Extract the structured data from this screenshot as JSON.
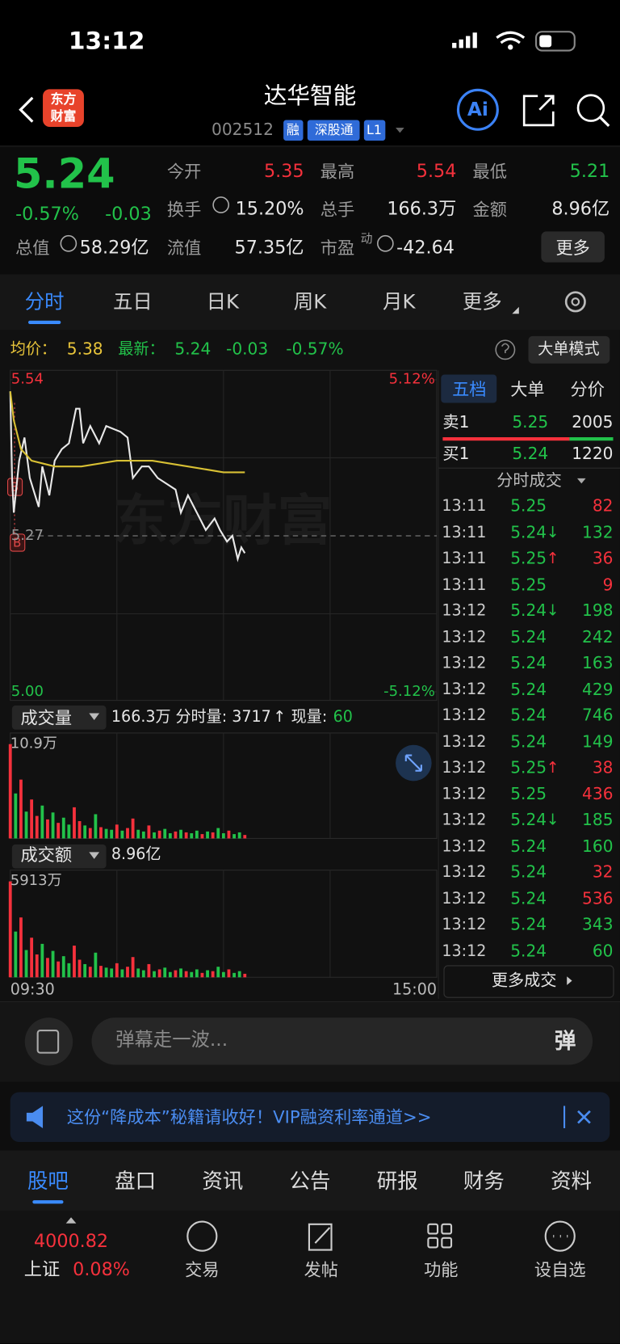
{
  "status_bar": {
    "time": "13:12"
  },
  "header": {
    "logo": [
      "东方",
      "财富"
    ],
    "title": "达华智能",
    "code": "002512",
    "tags": [
      "融",
      "深股通",
      "L1"
    ],
    "ai": "Ai"
  },
  "quote": {
    "price": "5.24",
    "change_pct": "-0.57%",
    "change": "-0.03",
    "stats": [
      {
        "label": "今开",
        "value": "5.35",
        "color": "#f5313c"
      },
      {
        "label": "最高",
        "value": "5.54",
        "color": "#f5313c"
      },
      {
        "label": "最低",
        "value": "5.21",
        "color": "#22c24a"
      },
      {
        "label": "换手",
        "value": "15.20%"
      },
      {
        "label": "总手",
        "value": "166.3万"
      },
      {
        "label": "金额",
        "value": "8.96亿"
      },
      {
        "label": "总值",
        "value": "58.29亿"
      },
      {
        "label": "流值",
        "value": "57.35亿"
      },
      {
        "label": "市盈",
        "superscript": "动",
        "value": "-42.64"
      }
    ],
    "more": "更多"
  },
  "tabs": [
    "分时",
    "五日",
    "日K",
    "周K",
    "月K",
    "更多"
  ],
  "info_bar": {
    "avg_label": "均价：",
    "avg": "5.38",
    "latest_label": "最新：",
    "latest": "5.24",
    "change": "-0.03",
    "change_pct": "-0.57%",
    "button": "大单模式"
  },
  "chart_data": [
    {
      "type": "line",
      "watermark": "东方财富",
      "marker": "B",
      "xlim": [
        0,
        240
      ],
      "xticks": [
        {
          "value": 0,
          "label": "09:30"
        },
        {
          "value": 60
        },
        {
          "value": 120
        },
        {
          "value": 180
        },
        {
          "value": 240,
          "label": "15:00"
        }
      ],
      "ylim": [
        5,
        5.54
      ],
      "yticks": [
        5.54,
        {
          "value": 5.405
        },
        5.27,
        {
          "value": 5.135
        },
        {
          "value": 5,
          "label": "5.00"
        }
      ],
      "y2lim": [
        -5.12,
        5.12
      ],
      "y2ticks": [
        {
          "value": 5.12,
          "label": "5.12%"
        },
        {
          "value": -5.12,
          "label": "-5.12%"
        }
      ],
      "series": [
        {
          "color": "#e8e8e8",
          "x": [
            0,
            1,
            2,
            5,
            8,
            11,
            16,
            18,
            22,
            25,
            29,
            33,
            37,
            39,
            41,
            45,
            50,
            54,
            62,
            66,
            69,
            74,
            78,
            83,
            88,
            93,
            96,
            100,
            105,
            110,
            115,
            118,
            122,
            125,
            128,
            130,
            132
          ],
          "values": [
            5.52,
            5.37,
            5.31,
            5.4,
            5.44,
            5.37,
            5.32,
            5.39,
            5.34,
            5.4,
            5.42,
            5.43,
            5.49,
            5.49,
            5.43,
            5.46,
            5.43,
            5.46,
            5.45,
            5.44,
            5.37,
            5.39,
            5.39,
            5.37,
            5.36,
            5.35,
            5.31,
            5.34,
            5.31,
            5.28,
            5.3,
            5.28,
            5.26,
            5.27,
            5.23,
            5.25,
            5.24
          ]
        },
        {
          "color": "#d8c034",
          "x": [
            0,
            2,
            6,
            12,
            25,
            40,
            60,
            80,
            100,
            120,
            132
          ],
          "values": [
            5.52,
            5.47,
            5.42,
            5.4,
            5.39,
            5.39,
            5.4,
            5.4,
            5.39,
            5.38,
            5.38
          ]
        }
      ]
    },
    {
      "type": "bar",
      "title": "成交量",
      "summary": "166.3万",
      "minute_label": "分时量: 3717",
      "minute_arrow": "↑",
      "current_label": "现量:",
      "current": "60",
      "xlim": [
        0,
        240
      ],
      "ylim": [
        0,
        10.9
      ],
      "yticks": [
        {
          "value": 10.9,
          "label": "10.9万"
        }
      ],
      "x": [
        0,
        3,
        6,
        9,
        12,
        15,
        18,
        21,
        24,
        27,
        30,
        33,
        36,
        39,
        42,
        45,
        48,
        51,
        54,
        57,
        60,
        63,
        66,
        69,
        72,
        75,
        78,
        81,
        84,
        87,
        90,
        93,
        96,
        99,
        102,
        105,
        108,
        111,
        114,
        117,
        120,
        123,
        126,
        129,
        132
      ],
      "values": [
        10.9,
        5.2,
        6.8,
        3.1,
        4.5,
        2.6,
        3.8,
        2.2,
        3.0,
        1.8,
        2.4,
        1.6,
        3.6,
        2.0,
        1.5,
        1.2,
        2.8,
        1.3,
        1.1,
        1.0,
        1.6,
        0.9,
        1.2,
        2.3,
        1.0,
        0.8,
        1.5,
        0.7,
        0.9,
        1.1,
        0.6,
        0.8,
        1.0,
        0.7,
        0.6,
        0.9,
        0.5,
        0.8,
        0.7,
        1.2,
        0.6,
        0.9,
        0.5,
        0.7,
        0.4
      ],
      "bar_colors": [
        "#f5313c",
        "#22c24a",
        "#f5313c",
        "#22c24a",
        "#f5313c",
        "#f5313c",
        "#22c24a",
        "#f5313c",
        "#22c24a",
        "#f5313c",
        "#22c24a",
        "#22c24a",
        "#f5313c",
        "#f5313c",
        "#22c24a",
        "#f5313c",
        "#22c24a",
        "#f5313c",
        "#22c24a",
        "#22c24a",
        "#f5313c",
        "#22c24a",
        "#f5313c",
        "#f5313c",
        "#22c24a",
        "#22c24a",
        "#f5313c",
        "#22c24a",
        "#f5313c",
        "#22c24a",
        "#22c24a",
        "#f5313c",
        "#22c24a",
        "#f5313c",
        "#22c24a",
        "#22c24a",
        "#f5313c",
        "#22c24a",
        "#f5313c",
        "#22c24a",
        "#22c24a",
        "#f5313c",
        "#22c24a",
        "#22c24a",
        "#f5313c"
      ]
    },
    {
      "type": "bar",
      "title": "成交额",
      "summary": "8.96亿",
      "xlim": [
        0,
        240
      ],
      "ylim": [
        0,
        5913
      ],
      "yticks": [
        {
          "value": 5913,
          "label": "5913万"
        }
      ],
      "x": [
        0,
        3,
        6,
        9,
        12,
        15,
        18,
        21,
        24,
        27,
        30,
        33,
        36,
        39,
        42,
        45,
        48,
        51,
        54,
        57,
        60,
        63,
        66,
        69,
        72,
        75,
        78,
        81,
        84,
        87,
        90,
        93,
        96,
        99,
        102,
        105,
        108,
        111,
        114,
        117,
        120,
        123,
        126,
        129,
        132
      ],
      "values": [
        5908,
        2818,
        3686,
        1680,
        2439,
        1409,
        2060,
        1192,
        1626,
        976,
        1301,
        867,
        1951,
        1084,
        813,
        650,
        1518,
        705,
        596,
        542,
        867,
        488,
        650,
        1247,
        542,
        434,
        813,
        379,
        488,
        596,
        325,
        434,
        542,
        379,
        325,
        488,
        271,
        434,
        379,
        650,
        325,
        488,
        271,
        379,
        217
      ],
      "bar_colors": [
        "#f5313c",
        "#22c24a",
        "#f5313c",
        "#22c24a",
        "#f5313c",
        "#f5313c",
        "#22c24a",
        "#f5313c",
        "#22c24a",
        "#f5313c",
        "#22c24a",
        "#22c24a",
        "#f5313c",
        "#f5313c",
        "#22c24a",
        "#f5313c",
        "#22c24a",
        "#f5313c",
        "#22c24a",
        "#22c24a",
        "#f5313c",
        "#22c24a",
        "#f5313c",
        "#f5313c",
        "#22c24a",
        "#22c24a",
        "#f5313c",
        "#22c24a",
        "#f5313c",
        "#22c24a",
        "#22c24a",
        "#f5313c",
        "#22c24a",
        "#f5313c",
        "#22c24a",
        "#22c24a",
        "#f5313c",
        "#22c24a",
        "#f5313c",
        "#22c24a",
        "#22c24a",
        "#f5313c",
        "#22c24a",
        "#22c24a",
        "#f5313c"
      ]
    }
  ],
  "order_book": {
    "tabs": [
      "五档",
      "大单",
      "分价"
    ],
    "ask": {
      "label": "卖1",
      "price": "5.25",
      "volume": "2005"
    },
    "bid": {
      "label": "买1",
      "price": "5.24",
      "volume": "1220"
    }
  },
  "trades": {
    "title": "分时成交",
    "more": "更多成交",
    "rows": [
      {
        "time": "13:11",
        "price": "5.25",
        "volume": "82",
        "color": "#f5313c"
      },
      {
        "time": "13:11",
        "price": "5.24",
        "arrow": "↓",
        "volume": "132",
        "color": "#22c24a"
      },
      {
        "time": "13:11",
        "price": "5.25",
        "arrow": "↑",
        "volume": "36",
        "color": "#f5313c"
      },
      {
        "time": "13:11",
        "price": "5.25",
        "volume": "9",
        "color": "#f5313c"
      },
      {
        "time": "13:12",
        "price": "5.24",
        "arrow": "↓",
        "volume": "198",
        "color": "#22c24a"
      },
      {
        "time": "13:12",
        "price": "5.24",
        "volume": "242",
        "color": "#22c24a"
      },
      {
        "time": "13:12",
        "price": "5.24",
        "volume": "163",
        "color": "#22c24a"
      },
      {
        "time": "13:12",
        "price": "5.24",
        "volume": "429",
        "color": "#22c24a"
      },
      {
        "time": "13:12",
        "price": "5.24",
        "volume": "746",
        "color": "#22c24a"
      },
      {
        "time": "13:12",
        "price": "5.24",
        "volume": "149",
        "color": "#22c24a"
      },
      {
        "time": "13:12",
        "price": "5.25",
        "arrow": "↑",
        "volume": "38",
        "color": "#f5313c"
      },
      {
        "time": "13:12",
        "price": "5.25",
        "volume": "436",
        "color": "#f5313c"
      },
      {
        "time": "13:12",
        "price": "5.24",
        "arrow": "↓",
        "volume": "185",
        "color": "#22c24a"
      },
      {
        "time": "13:12",
        "price": "5.24",
        "volume": "160",
        "color": "#22c24a"
      },
      {
        "time": "13:12",
        "price": "5.24",
        "volume": "32",
        "color": "#f5313c"
      },
      {
        "time": "13:12",
        "price": "5.24",
        "volume": "536",
        "color": "#f5313c"
      },
      {
        "time": "13:12",
        "price": "5.24",
        "volume": "343",
        "color": "#22c24a"
      },
      {
        "time": "13:12",
        "price": "5.24",
        "volume": "60",
        "color": "#22c24a"
      }
    ]
  },
  "comment": {
    "placeholder": "弹幕走一波...",
    "button": "弹"
  },
  "banner": {
    "text": "这份“降成本”秘籍请收好！VIP融资利率通道>>"
  },
  "sections": [
    "股吧",
    "盘口",
    "资讯",
    "公告",
    "研报",
    "财务",
    "资料"
  ],
  "index": {
    "value": "4000.82",
    "name": "上证",
    "change": "0.08%"
  },
  "nav": [
    "交易",
    "发帖",
    "功能",
    "设自选"
  ]
}
